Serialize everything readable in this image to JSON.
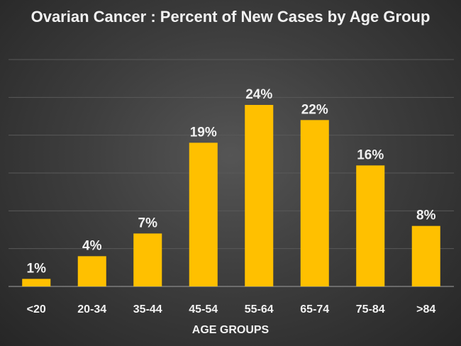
{
  "chart_data": {
    "type": "bar",
    "title": "Ovarian Cancer : Percent of New Cases by Age Group",
    "xlabel": "AGE GROUPS",
    "ylabel": "",
    "categories": [
      "<20",
      "20-34",
      "35-44",
      "45-54",
      "55-64",
      "65-74",
      "75-84",
      ">84"
    ],
    "values": [
      1,
      4,
      7,
      19,
      24,
      22,
      16,
      8
    ],
    "data_labels": [
      "1%",
      "4%",
      "7%",
      "19%",
      "24%",
      "22%",
      "16%",
      "8%"
    ],
    "ylim": [
      0,
      30
    ],
    "grid": true,
    "y_axis_labels_shown": false,
    "legend": "none",
    "colors": {
      "bar": "#FFC000",
      "gridline": "#595959",
      "text": "#F2F2F2",
      "background": "#3E3E3E"
    }
  }
}
